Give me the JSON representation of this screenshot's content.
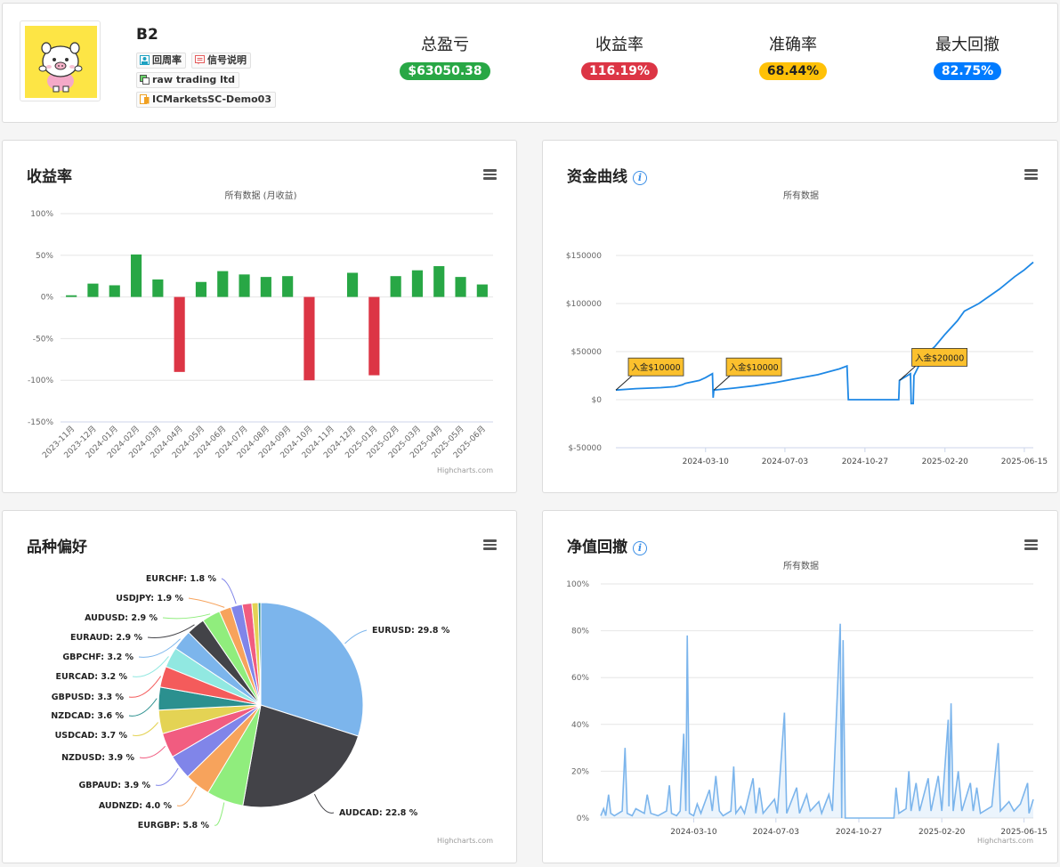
{
  "profile": {
    "name": "B2",
    "tags": [
      "回周率",
      "信号说明",
      "raw trading ltd",
      "ICMarketsSC-Demo03"
    ]
  },
  "stats": [
    {
      "label": "总盈亏",
      "value": "$63050.38",
      "color": "#28a745"
    },
    {
      "label": "收益率",
      "value": "116.19%",
      "color": "#dc3545"
    },
    {
      "label": "准确率",
      "value": "68.44%",
      "color": "#ffc107"
    },
    {
      "label": "最大回撤",
      "value": "82.75%",
      "color": "#007bff"
    }
  ],
  "panels": {
    "returns": {
      "title": "收益率",
      "subtitle": "所有数据 (月收益)"
    },
    "equity": {
      "title": "资金曲线",
      "subtitle": "所有数据"
    },
    "symbols": {
      "title": "品种偏好"
    },
    "drawdown": {
      "title": "净值回撤",
      "subtitle": "所有数据"
    }
  },
  "credits": "Highcharts.com",
  "chart_data": [
    {
      "type": "bar",
      "categories": [
        "2023-11月",
        "2023-12月",
        "2024-01月",
        "2024-02月",
        "2024-03月",
        "2024-04月",
        "2024-05月",
        "2024-06月",
        "2024-07月",
        "2024-08月",
        "2024-09月",
        "2024-10月",
        "2024-11月",
        "2024-12月",
        "2025-01月",
        "2025-02月",
        "2025-03月",
        "2025-04月",
        "2025-05月",
        "2025-06月"
      ],
      "values": [
        2,
        16,
        14,
        51,
        21,
        -90,
        18,
        31,
        27,
        24,
        25,
        -100,
        0,
        29,
        -94,
        25,
        32,
        37,
        24,
        15
      ],
      "ylim": [
        -150,
        100
      ],
      "yticks": [
        100,
        50,
        0,
        -50,
        -100,
        -150
      ],
      "ytick_labels": [
        "100%",
        "50%",
        "0%",
        "-50%",
        "-100%",
        "-150%"
      ],
      "positive_color": "#28a745",
      "negative_color": "#dc3545"
    },
    {
      "type": "line",
      "xlim": [
        "2023-11-01",
        "2025-06-28"
      ],
      "ylim": [
        -50000,
        150000
      ],
      "yticks": [
        150000,
        100000,
        50000,
        0,
        -50000
      ],
      "ytick_labels": [
        "$150000",
        "$100000",
        "$50000",
        "$0",
        "$-50000"
      ],
      "xticks": [
        "2024-03-10",
        "2024-07-03",
        "2024-10-27",
        "2025-02-20",
        "2025-06-15"
      ],
      "color": "#1e88e5",
      "series": [
        {
          "points": [
            [
              "2023-11-01",
              10000
            ],
            [
              "2023-11-30",
              11500
            ],
            [
              "2024-01-05",
              12500
            ],
            [
              "2024-01-25",
              13500
            ],
            [
              "2024-02-05",
              15500
            ],
            [
              "2024-02-10",
              17000
            ],
            [
              "2024-03-01",
              20000
            ],
            [
              "2024-03-10",
              23000
            ],
            [
              "2024-03-20",
              27000
            ],
            [
              "2024-03-21",
              2000
            ],
            [
              "2024-03-22",
              10000
            ],
            [
              "2024-04-20",
              12000
            ],
            [
              "2024-05-20",
              14500
            ],
            [
              "2024-06-20",
              18000
            ],
            [
              "2024-07-20",
              22000
            ],
            [
              "2024-08-20",
              26000
            ],
            [
              "2024-09-20",
              32000
            ],
            [
              "2024-10-01",
              35000
            ],
            [
              "2024-10-03",
              0
            ],
            [
              "2024-11-15",
              0
            ],
            [
              "2024-12-15",
              0
            ],
            [
              "2024-12-16",
              20000
            ],
            [
              "2024-12-25",
              24000
            ],
            [
              "2025-01-01",
              27000
            ],
            [
              "2025-01-02",
              -4000
            ],
            [
              "2025-01-05",
              -4000
            ],
            [
              "2025-01-06",
              25000
            ],
            [
              "2025-01-20",
              45000
            ],
            [
              "2025-02-05",
              55000
            ],
            [
              "2025-02-20",
              68000
            ],
            [
              "2025-03-10",
              82000
            ],
            [
              "2025-03-20",
              92000
            ],
            [
              "2025-04-10",
              100000
            ],
            [
              "2025-05-10",
              115000
            ],
            [
              "2025-06-01",
              128000
            ],
            [
              "2025-06-15",
              135000
            ],
            [
              "2025-06-28",
              143000
            ]
          ]
        }
      ],
      "annotations": [
        {
          "text": "入金$10000",
          "x": "2023-11-01",
          "y": 10000
        },
        {
          "text": "入金$10000",
          "x": "2024-03-22",
          "y": 10000
        },
        {
          "text": "入金$20000",
          "x": "2024-12-16",
          "y": 20000
        }
      ]
    },
    {
      "type": "pie",
      "slices": [
        {
          "name": "EURUSD",
          "value": 29.8,
          "label": "EURUSD: 29.8 %",
          "color": "#7cb5ec"
        },
        {
          "name": "AUDCAD",
          "value": 22.8,
          "label": "AUDCAD: 22.8 %",
          "color": "#434348"
        },
        {
          "name": "EURGBP",
          "value": 5.8,
          "label": "EURGBP: 5.8 %",
          "color": "#90ed7d"
        },
        {
          "name": "AUDNZD",
          "value": 4.0,
          "label": "AUDNZD: 4.0 %",
          "color": "#f7a35c"
        },
        {
          "name": "GBPAUD",
          "value": 3.9,
          "label": "GBPAUD: 3.9 %",
          "color": "#8085e9"
        },
        {
          "name": "NZDUSD",
          "value": 3.9,
          "label": "NZDUSD: 3.9 %",
          "color": "#f15c80"
        },
        {
          "name": "USDCAD",
          "value": 3.7,
          "label": "USDCAD: 3.7 %",
          "color": "#e4d354"
        },
        {
          "name": "NZDCAD",
          "value": 3.6,
          "label": "NZDCAD: 3.6 %",
          "color": "#2b908f"
        },
        {
          "name": "GBPUSD",
          "value": 3.3,
          "label": "GBPUSD: 3.3 %",
          "color": "#f45b5b"
        },
        {
          "name": "EURCAD",
          "value": 3.2,
          "label": "EURCAD: 3.2 %",
          "color": "#91e8e1"
        },
        {
          "name": "GBPCHF",
          "value": 3.2,
          "label": "GBPCHF: 3.2 %",
          "color": "#7cb5ec"
        },
        {
          "name": "EURAUD",
          "value": 2.9,
          "label": "EURAUD: 2.9 %",
          "color": "#434348"
        },
        {
          "name": "AUDUSD",
          "value": 2.9,
          "label": "AUDUSD: 2.9 %",
          "color": "#90ed7d"
        },
        {
          "name": "USDJPY",
          "value": 1.9,
          "label": "USDJPY: 1.9 %",
          "color": "#f7a35c"
        },
        {
          "name": "EURCHF",
          "value": 1.8,
          "label": "EURCHF: 1.8 %",
          "color": "#8085e9"
        },
        {
          "name": "other1",
          "value": 1.5,
          "label": "",
          "color": "#f15c80"
        },
        {
          "name": "other2",
          "value": 1.0,
          "label": "",
          "color": "#e4d354"
        },
        {
          "name": "other3",
          "value": 0.4,
          "label": "",
          "color": "#2b908f"
        }
      ]
    },
    {
      "type": "area",
      "xlim": [
        "2023-11-01",
        "2025-06-28"
      ],
      "ylim": [
        0,
        100
      ],
      "yticks": [
        100,
        80,
        60,
        40,
        20,
        0
      ],
      "ytick_labels": [
        "100%",
        "80%",
        "60%",
        "40%",
        "20%",
        "0%"
      ],
      "xticks": [
        "2024-03-10",
        "2024-07-03",
        "2024-10-27",
        "2025-02-20",
        "2025-06-15"
      ],
      "color": "#7cb5ec",
      "series": [
        {
          "points": [
            [
              "2023-11-01",
              1
            ],
            [
              "2023-11-05",
              4
            ],
            [
              "2023-11-08",
              1
            ],
            [
              "2023-11-12",
              10
            ],
            [
              "2023-11-15",
              2
            ],
            [
              "2023-11-20",
              1
            ],
            [
              "2023-12-01",
              3
            ],
            [
              "2023-12-05",
              30
            ],
            [
              "2023-12-08",
              2
            ],
            [
              "2023-12-15",
              1
            ],
            [
              "2023-12-20",
              4
            ],
            [
              "2024-01-01",
              2
            ],
            [
              "2024-01-05",
              10
            ],
            [
              "2024-01-10",
              2
            ],
            [
              "2024-01-20",
              1
            ],
            [
              "2024-02-01",
              3
            ],
            [
              "2024-02-05",
              14
            ],
            [
              "2024-02-08",
              2
            ],
            [
              "2024-02-15",
              1
            ],
            [
              "2024-02-20",
              3
            ],
            [
              "2024-02-25",
              36
            ],
            [
              "2024-02-28",
              3
            ],
            [
              "2024-03-01",
              78
            ],
            [
              "2024-03-04",
              2
            ],
            [
              "2024-03-10",
              1
            ],
            [
              "2024-03-15",
              6
            ],
            [
              "2024-03-20",
              2
            ],
            [
              "2024-04-01",
              12
            ],
            [
              "2024-04-05",
              3
            ],
            [
              "2024-04-10",
              18
            ],
            [
              "2024-04-15",
              3
            ],
            [
              "2024-04-20",
              1
            ],
            [
              "2024-05-01",
              3
            ],
            [
              "2024-05-05",
              22
            ],
            [
              "2024-05-08",
              2
            ],
            [
              "2024-05-15",
              5
            ],
            [
              "2024-05-20",
              2
            ],
            [
              "2024-06-01",
              17
            ],
            [
              "2024-06-05",
              2
            ],
            [
              "2024-06-10",
              13
            ],
            [
              "2024-06-15",
              2
            ],
            [
              "2024-07-01",
              8
            ],
            [
              "2024-07-05",
              2
            ],
            [
              "2024-07-15",
              45
            ],
            [
              "2024-07-18",
              2
            ],
            [
              "2024-08-01",
              13
            ],
            [
              "2024-08-05",
              2
            ],
            [
              "2024-08-15",
              10
            ],
            [
              "2024-08-20",
              3
            ],
            [
              "2024-09-01",
              7
            ],
            [
              "2024-09-05",
              2
            ],
            [
              "2024-09-15",
              10
            ],
            [
              "2024-09-20",
              3
            ],
            [
              "2024-10-01",
              83
            ],
            [
              "2024-10-03",
              0
            ],
            [
              "2024-10-05",
              76
            ],
            [
              "2024-10-08",
              0
            ],
            [
              "2024-12-15",
              0
            ],
            [
              "2024-12-18",
              13
            ],
            [
              "2024-12-22",
              2
            ],
            [
              "2025-01-01",
              4
            ],
            [
              "2025-01-05",
              20
            ],
            [
              "2025-01-08",
              3
            ],
            [
              "2025-01-15",
              15
            ],
            [
              "2025-01-20",
              3
            ],
            [
              "2025-02-01",
              17
            ],
            [
              "2025-02-05",
              3
            ],
            [
              "2025-02-15",
              18
            ],
            [
              "2025-02-20",
              3
            ],
            [
              "2025-03-01",
              42
            ],
            [
              "2025-03-02",
              5
            ],
            [
              "2025-03-05",
              49
            ],
            [
              "2025-03-08",
              3
            ],
            [
              "2025-03-15",
              20
            ],
            [
              "2025-03-20",
              3
            ],
            [
              "2025-04-01",
              15
            ],
            [
              "2025-04-05",
              3
            ],
            [
              "2025-04-10",
              13
            ],
            [
              "2025-04-15",
              2
            ],
            [
              "2025-05-01",
              5
            ],
            [
              "2025-05-10",
              32
            ],
            [
              "2025-05-13",
              3
            ],
            [
              "2025-05-25",
              7
            ],
            [
              "2025-06-01",
              3
            ],
            [
              "2025-06-10",
              6
            ],
            [
              "2025-06-20",
              15
            ],
            [
              "2025-06-22",
              2
            ],
            [
              "2025-06-28",
              8
            ]
          ]
        }
      ]
    }
  ]
}
